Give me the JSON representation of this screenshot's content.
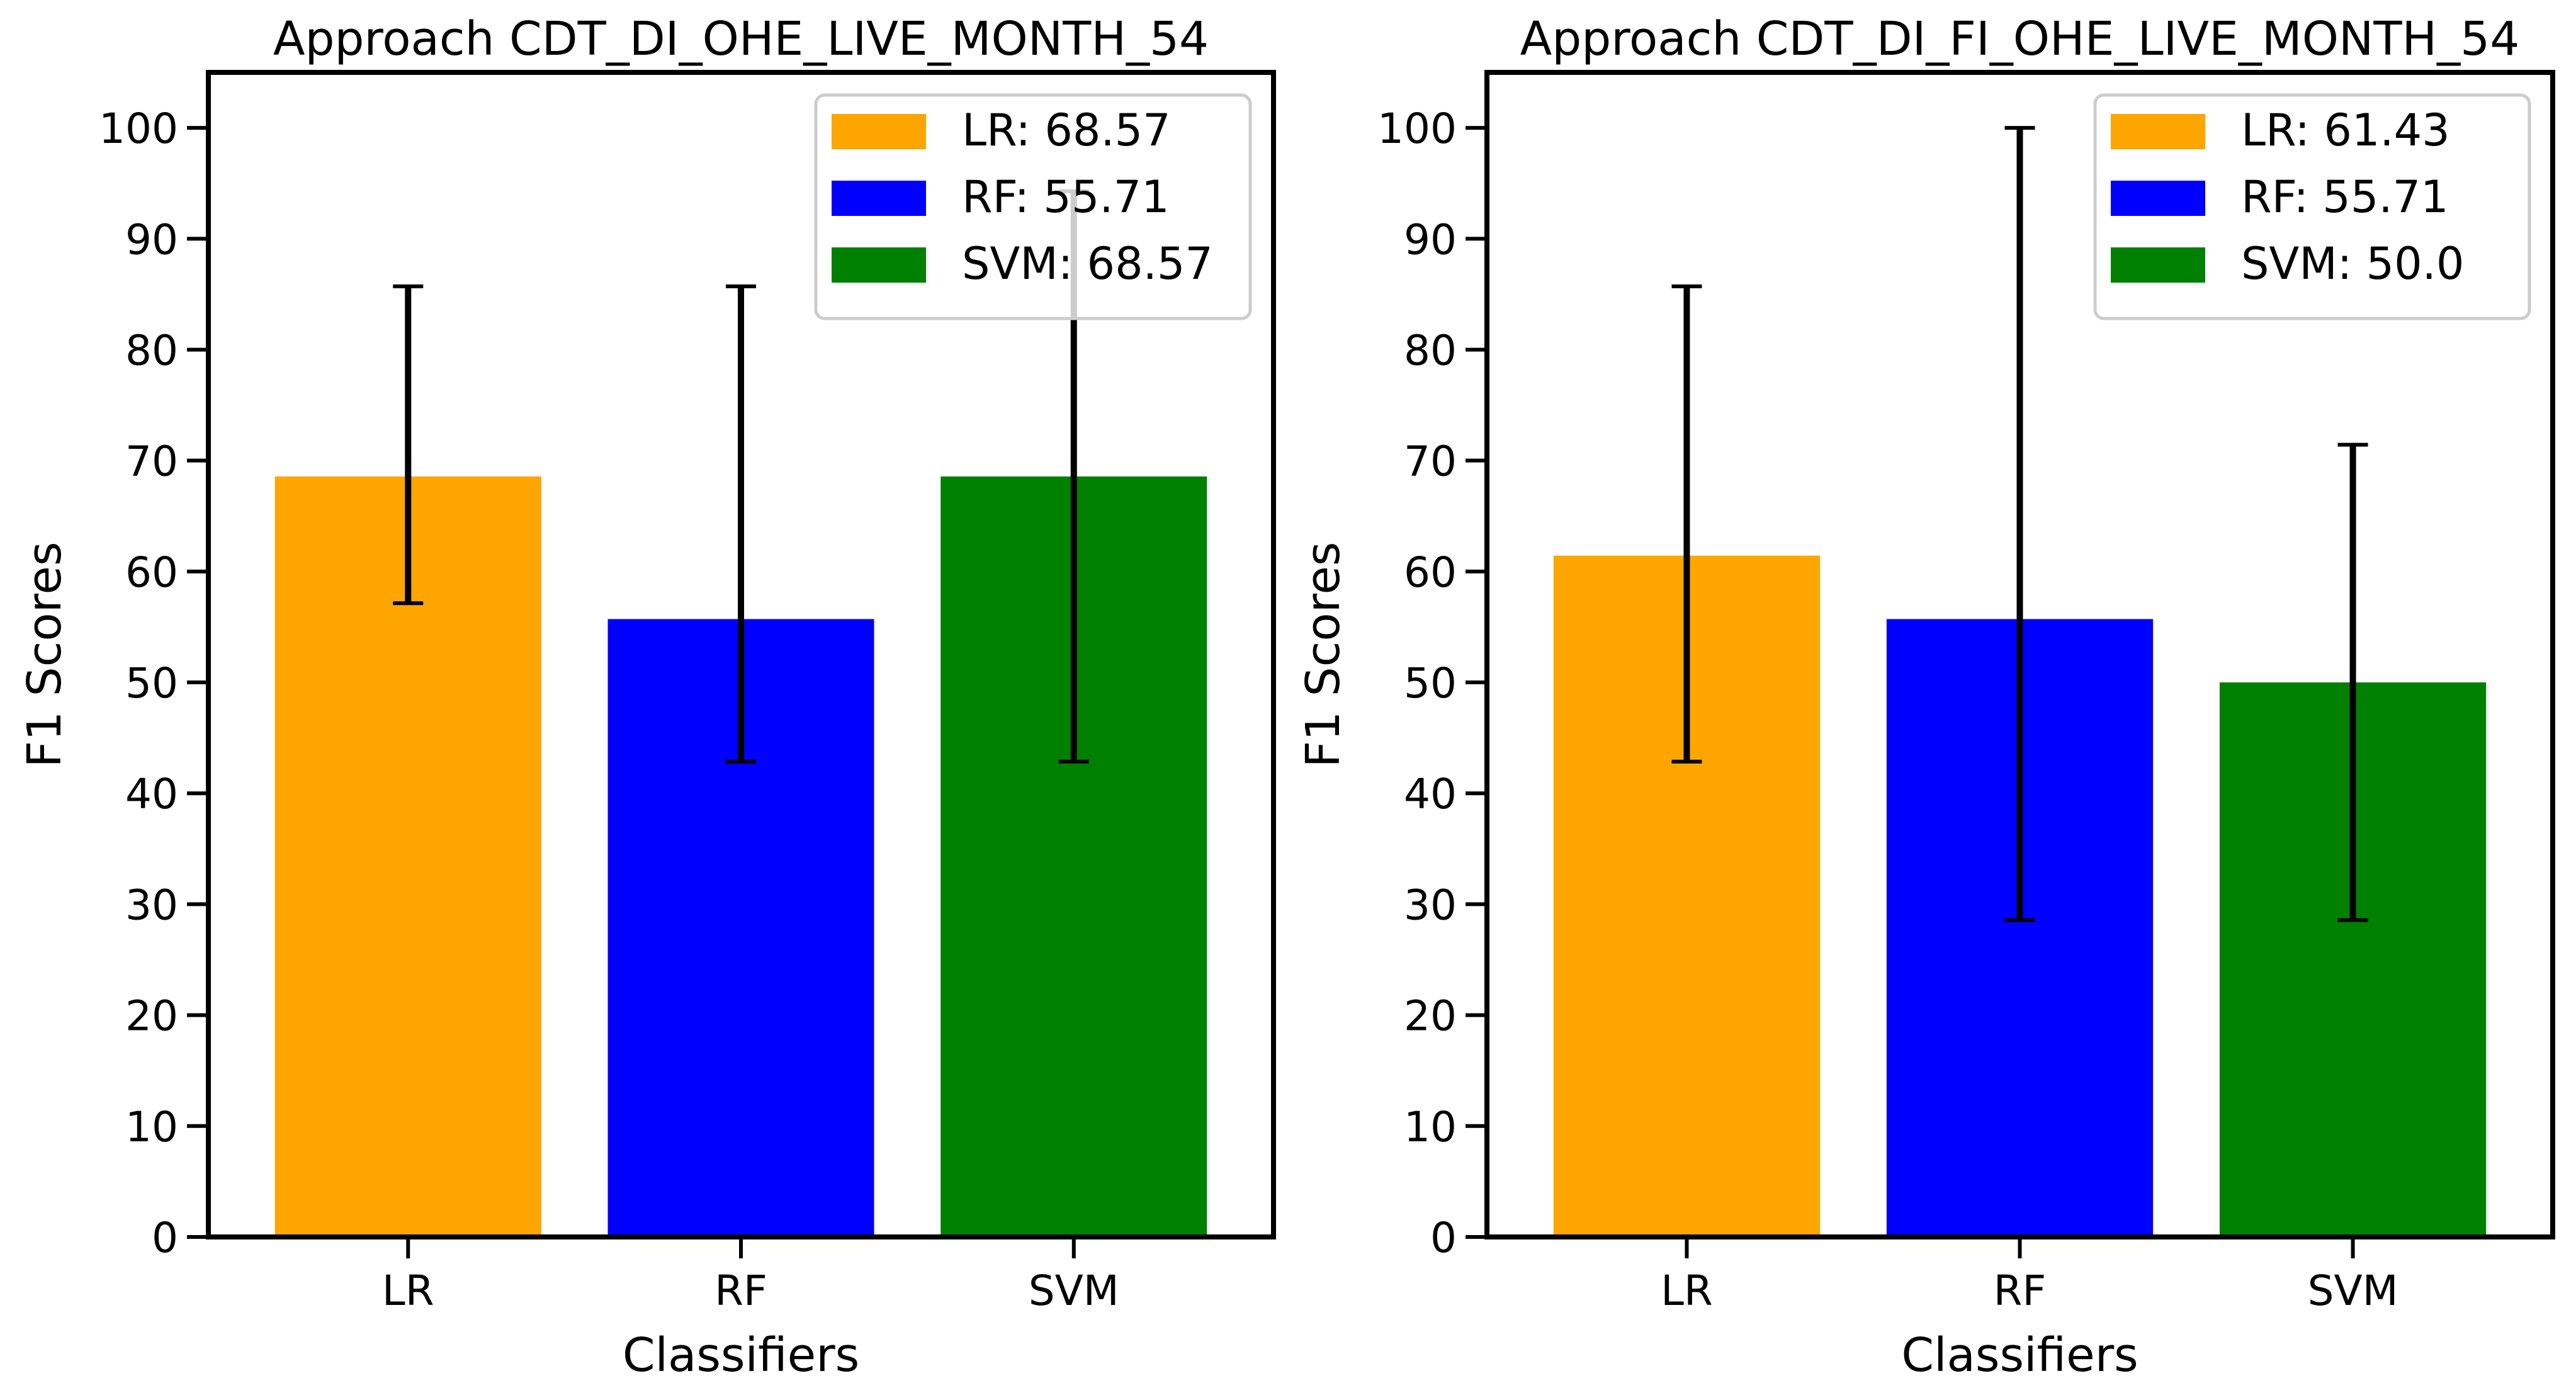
{
  "chart_data": [
    {
      "type": "bar",
      "title": "Approach CDT_DI_OHE_LIVE_MONTH_54",
      "xlabel": "Classifiers",
      "ylabel": "F1 Scores",
      "categories": [
        "LR",
        "RF",
        "SVM"
      ],
      "values": [
        68.57,
        55.71,
        68.57
      ],
      "error_low": [
        57.14,
        42.86,
        42.86
      ],
      "error_high": [
        85.71,
        85.71,
        94.29
      ],
      "colors": [
        "#ffa500",
        "#0000ff",
        "#008000"
      ],
      "ylim": [
        0,
        105
      ],
      "yticks": [
        0,
        10,
        20,
        30,
        40,
        50,
        60,
        70,
        80,
        90,
        100
      ],
      "grid": false,
      "legend_position": "top-right",
      "legend": [
        "LR: 68.57",
        "RF: 55.71",
        "SVM: 68.57"
      ]
    },
    {
      "type": "bar",
      "title": "Approach CDT_DI_FI_OHE_LIVE_MONTH_54",
      "xlabel": "Classifiers",
      "ylabel": "F1 Scores",
      "categories": [
        "LR",
        "RF",
        "SVM"
      ],
      "values": [
        61.43,
        55.71,
        50.0
      ],
      "error_low": [
        42.86,
        28.57,
        28.57
      ],
      "error_high": [
        85.71,
        100.0,
        71.43
      ],
      "colors": [
        "#ffa500",
        "#0000ff",
        "#008000"
      ],
      "ylim": [
        0,
        105
      ],
      "yticks": [
        0,
        10,
        20,
        30,
        40,
        50,
        60,
        70,
        80,
        90,
        100
      ],
      "grid": false,
      "legend_position": "top-right",
      "legend": [
        "LR: 61.43",
        "RF: 55.71",
        "SVM: 50.0"
      ]
    }
  ]
}
